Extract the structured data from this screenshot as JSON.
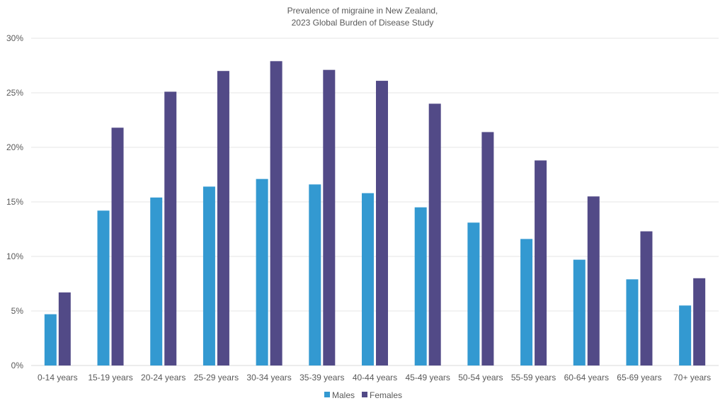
{
  "chart_data": {
    "type": "bar",
    "title": [
      "Prevalence of migraine in New Zealand,",
      "2023 Global Burden of Disease Study"
    ],
    "xlabel": "",
    "ylabel": "",
    "ylim": [
      0,
      30
    ],
    "yticks": [
      "0%",
      "5%",
      "10%",
      "15%",
      "20%",
      "25%",
      "30%"
    ],
    "grid": true,
    "legend_position": "bottom",
    "categories": [
      "0-14 years",
      "15-19 years",
      "20-24 years",
      "25-29 years",
      "30-34 years",
      "35-39 years",
      "40-44 years",
      "45-49 years",
      "50-54 years",
      "55-59 years",
      "60-64 years",
      "65-69 years",
      "70+ years"
    ],
    "series": [
      {
        "name": "Males",
        "color": "#3399d1",
        "values": [
          4.7,
          14.2,
          15.4,
          16.4,
          17.1,
          16.6,
          15.8,
          14.5,
          13.1,
          11.6,
          9.7,
          7.9,
          5.5
        ]
      },
      {
        "name": "Females",
        "color": "#524a87",
        "values": [
          6.7,
          21.8,
          25.1,
          27.0,
          27.9,
          27.1,
          26.1,
          24.0,
          21.4,
          18.8,
          15.5,
          12.3,
          8.0
        ]
      }
    ]
  }
}
